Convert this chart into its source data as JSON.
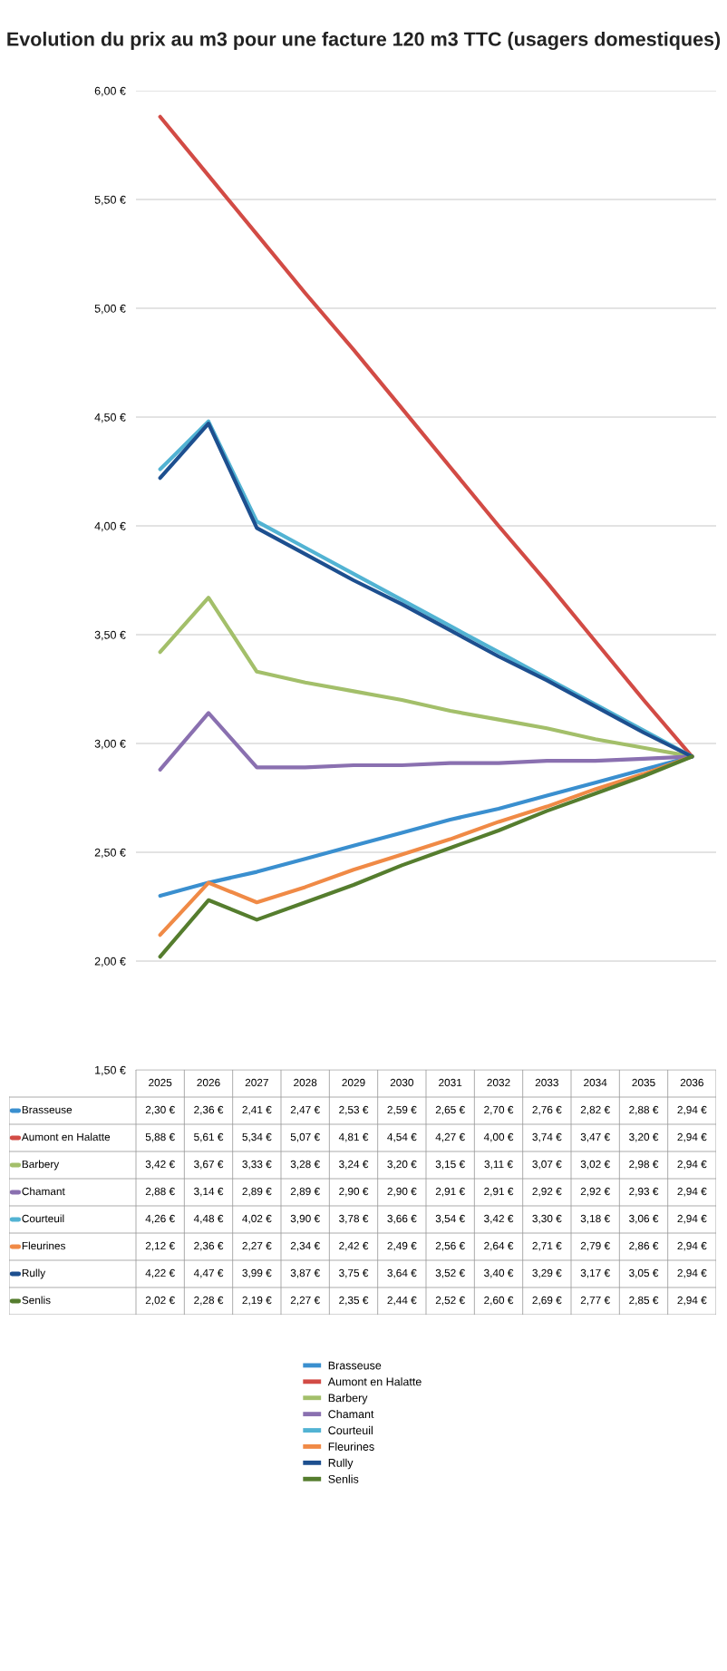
{
  "chart_data": {
    "type": "line",
    "title": "Evolution du prix au m3 pour une facture 120 m3 TTC (usagers domestiques)",
    "categories": [
      "2025",
      "2026",
      "2027",
      "2028",
      "2029",
      "2030",
      "2031",
      "2032",
      "2033",
      "2034",
      "2035",
      "2036"
    ],
    "series": [
      {
        "name": "Brasseuse",
        "color": "#3a8fcf",
        "values": [
          2.3,
          2.36,
          2.41,
          2.47,
          2.53,
          2.59,
          2.65,
          2.7,
          2.76,
          2.82,
          2.88,
          2.94
        ],
        "value_labels": [
          "2,30 €",
          "2,36 €",
          "2,41 €",
          "2,47 €",
          "2,53 €",
          "2,59 €",
          "2,65 €",
          "2,70 €",
          "2,76 €",
          "2,82 €",
          "2,88 €",
          "2,94 €"
        ]
      },
      {
        "name": "Aumont en Halatte",
        "color": "#d24b45",
        "values": [
          5.88,
          5.61,
          5.34,
          5.07,
          4.81,
          4.54,
          4.27,
          4.0,
          3.74,
          3.47,
          3.2,
          2.94
        ],
        "value_labels": [
          "5,88 €",
          "5,61 €",
          "5,34 €",
          "5,07 €",
          "4,81 €",
          "4,54 €",
          "4,27 €",
          "4,00 €",
          "3,74 €",
          "3,47 €",
          "3,20 €",
          "2,94 €"
        ]
      },
      {
        "name": "Barbery",
        "color": "#a3bf6a",
        "values": [
          3.42,
          3.67,
          3.33,
          3.28,
          3.24,
          3.2,
          3.15,
          3.11,
          3.07,
          3.02,
          2.98,
          2.94
        ],
        "value_labels": [
          "3,42 €",
          "3,67 €",
          "3,33 €",
          "3,28 €",
          "3,24 €",
          "3,20 €",
          "3,15 €",
          "3,11 €",
          "3,07 €",
          "3,02 €",
          "2,98 €",
          "2,94 €"
        ]
      },
      {
        "name": "Chamant",
        "color": "#8a70b0",
        "values": [
          2.88,
          3.14,
          2.89,
          2.89,
          2.9,
          2.9,
          2.91,
          2.91,
          2.92,
          2.92,
          2.93,
          2.94
        ],
        "value_labels": [
          "2,88 €",
          "3,14 €",
          "2,89 €",
          "2,89 €",
          "2,90 €",
          "2,90 €",
          "2,91 €",
          "2,91 €",
          "2,92 €",
          "2,92 €",
          "2,93 €",
          "2,94 €"
        ]
      },
      {
        "name": "Courteuil",
        "color": "#52b3d3",
        "values": [
          4.26,
          4.48,
          4.02,
          3.9,
          3.78,
          3.66,
          3.54,
          3.42,
          3.3,
          3.18,
          3.06,
          2.94
        ],
        "value_labels": [
          "4,26 €",
          "4,48 €",
          "4,02 €",
          "3,90 €",
          "3,78 €",
          "3,66 €",
          "3,54 €",
          "3,42 €",
          "3,30 €",
          "3,18 €",
          "3,06 €",
          "2,94 €"
        ]
      },
      {
        "name": "Fleurines",
        "color": "#f08a46",
        "values": [
          2.12,
          2.36,
          2.27,
          2.34,
          2.42,
          2.49,
          2.56,
          2.64,
          2.71,
          2.79,
          2.86,
          2.94
        ],
        "value_labels": [
          "2,12 €",
          "2,36 €",
          "2,27 €",
          "2,34 €",
          "2,42 €",
          "2,49 €",
          "2,56 €",
          "2,64 €",
          "2,71 €",
          "2,79 €",
          "2,86 €",
          "2,94 €"
        ]
      },
      {
        "name": "Rully",
        "color": "#1d4f8f",
        "values": [
          4.22,
          4.47,
          3.99,
          3.87,
          3.75,
          3.64,
          3.52,
          3.4,
          3.29,
          3.17,
          3.05,
          2.94
        ],
        "value_labels": [
          "4,22 €",
          "4,47 €",
          "3,99 €",
          "3,87 €",
          "3,75 €",
          "3,64 €",
          "3,52 €",
          "3,40 €",
          "3,29 €",
          "3,17 €",
          "3,05 €",
          "2,94 €"
        ]
      },
      {
        "name": "Senlis",
        "color": "#557d2e",
        "values": [
          2.02,
          2.28,
          2.19,
          2.27,
          2.35,
          2.44,
          2.52,
          2.6,
          2.69,
          2.77,
          2.85,
          2.94
        ],
        "value_labels": [
          "2,02 €",
          "2,28 €",
          "2,19 €",
          "2,27 €",
          "2,35 €",
          "2,44 €",
          "2,52 €",
          "2,60 €",
          "2,69 €",
          "2,77 €",
          "2,85 €",
          "2,94 €"
        ]
      }
    ],
    "ylim": [
      1.5,
      6
    ],
    "yticks": [
      {
        "value": 1.5,
        "label": "1,50 €"
      },
      {
        "value": 2,
        "label": "2,00 €"
      },
      {
        "value": 2.5,
        "label": "2,50 €"
      },
      {
        "value": 3,
        "label": "3,00 €"
      },
      {
        "value": 3.5,
        "label": "3,50 €"
      },
      {
        "value": 4,
        "label": "4,00 €"
      },
      {
        "value": 4.5,
        "label": "4,50 €"
      },
      {
        "value": 5,
        "label": "5,00 €"
      },
      {
        "value": 5.5,
        "label": "5,50 €"
      },
      {
        "value": 6,
        "label": "6,00 €"
      }
    ],
    "grid": "y",
    "legend": "bottom"
  }
}
